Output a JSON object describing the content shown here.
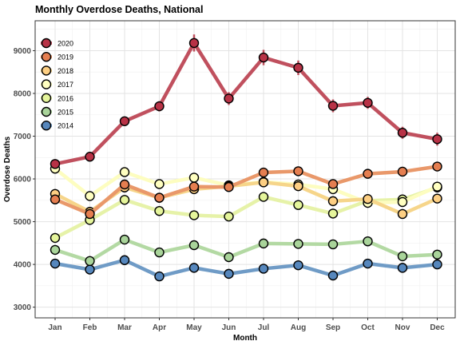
{
  "chart_data": {
    "type": "line",
    "title": "Monthly Overdose Deaths, National",
    "xlabel": "Month",
    "ylabel": "Overdose Deaths",
    "categories": [
      "Jan",
      "Feb",
      "Mar",
      "Apr",
      "May",
      "Jun",
      "Jul",
      "Aug",
      "Sep",
      "Oct",
      "Nov",
      "Dec"
    ],
    "ylim": [
      2750,
      9700
    ],
    "yticks": [
      3000,
      4000,
      5000,
      6000,
      7000,
      8000,
      9000
    ],
    "grid": true,
    "legend_position": "top-left",
    "series": [
      {
        "name": "2020",
        "color": "#c0505e",
        "point_fill": "#b83246",
        "values": [
          6350,
          6520,
          7350,
          7700,
          9180,
          7880,
          8840,
          8600,
          7710,
          7780,
          7080,
          6930
        ],
        "error": [
          60,
          70,
          80,
          120,
          200,
          150,
          180,
          170,
          150,
          140,
          140,
          150
        ]
      },
      {
        "name": "2019",
        "color": "#e9986a",
        "point_fill": "#e57e50",
        "values": [
          5520,
          5180,
          5870,
          5560,
          5820,
          5810,
          6150,
          6180,
          5880,
          6120,
          6170,
          6290
        ]
      },
      {
        "name": "2018",
        "color": "#f6d58a",
        "point_fill": "#fdcf83",
        "values": [
          5650,
          5230,
          5800,
          5560,
          5760,
          5830,
          5920,
          5830,
          5480,
          5530,
          5180,
          5540
        ]
      },
      {
        "name": "2017",
        "color": "#fdfdc0",
        "point_fill": "#ffffc0",
        "values": [
          6240,
          5600,
          6160,
          5880,
          6030,
          5850,
          5930,
          5870,
          5760,
          5440,
          5460,
          5820
        ]
      },
      {
        "name": "2016",
        "color": "#e6f2a8",
        "point_fill": "#e5f59b",
        "values": [
          4620,
          5040,
          5510,
          5250,
          5150,
          5120,
          5580,
          5390,
          5190,
          5490,
          5520,
          5800
        ]
      },
      {
        "name": "2015",
        "color": "#b3d9a3",
        "point_fill": "#a9d49a",
        "values": [
          4340,
          4080,
          4580,
          4280,
          4450,
          4170,
          4490,
          4480,
          4470,
          4540,
          4190,
          4230
        ]
      },
      {
        "name": "2014",
        "color": "#6f9bc6",
        "point_fill": "#5687bd",
        "values": [
          4020,
          3880,
          4100,
          3720,
          3920,
          3780,
          3900,
          3980,
          3740,
          4020,
          3920,
          4000
        ]
      }
    ]
  }
}
